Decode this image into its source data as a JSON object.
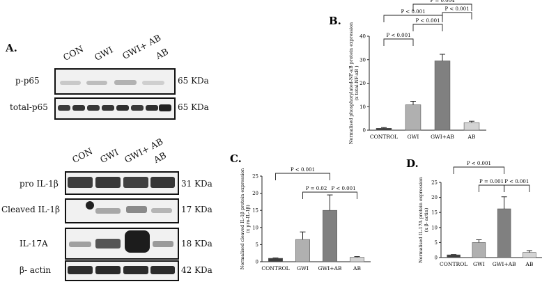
{
  "panel_a": {
    "letter": "A.",
    "top": {
      "lanes": [
        "CON",
        "GWI",
        "GWI+ AB",
        "AB"
      ],
      "rows": [
        {
          "label": "p-p65",
          "kda": "65 KDa"
        },
        {
          "label": "total-p65",
          "kda": "65 KDa"
        }
      ]
    },
    "bottom": {
      "lanes": [
        "CON",
        "GWI",
        "GWI+ AB",
        "AB"
      ],
      "rows": [
        {
          "label": "pro IL-1β",
          "kda": "31 KDa"
        },
        {
          "label": "Cleaved IL-1β",
          "kda": "17 KDa"
        },
        {
          "label": "IL-17A",
          "kda": "18 KDa"
        },
        {
          "label": "β- actin",
          "kda": "42 KDa"
        }
      ]
    }
  },
  "chart_data": [
    {
      "panel": "B.",
      "type": "bar",
      "categories": [
        "CONTROL",
        "GWI",
        "GWI+AB",
        "AB"
      ],
      "values": [
        0.8,
        10.8,
        29.5,
        3.2
      ],
      "errors": [
        0.3,
        1.5,
        2.8,
        0.6
      ],
      "ylabel": "Normalised phosphorylated-NF-κB protein expression",
      "ylabel2": "(x total-NF-κB )",
      "ylim": [
        0,
        40
      ],
      "yticks": [
        0,
        10,
        20,
        30,
        40
      ],
      "bar_colors": [
        "#3d3d3d",
        "#b0b0b0",
        "#808080",
        "#d4d4d4"
      ],
      "comparisons": [
        {
          "from": 0,
          "to": 1,
          "label": "P < 0.001"
        },
        {
          "from": 1,
          "to": 2,
          "label": "P < 0.001"
        },
        {
          "from": 2,
          "to": 3,
          "label": "P < 0.001"
        },
        {
          "from": 0,
          "to": 2,
          "label": "P < 0.001"
        },
        {
          "from": 1,
          "to": 3,
          "label": "P = 0.004"
        }
      ]
    },
    {
      "panel": "C.",
      "type": "bar",
      "categories": [
        "CONTROL",
        "GWI",
        "GWI+AB",
        "AB"
      ],
      "values": [
        1.0,
        6.5,
        15.0,
        1.3
      ],
      "errors": [
        0.1,
        2.2,
        4.5,
        0.2
      ],
      "ylabel": "Normalised cleaved IL-1β protein expression",
      "ylabel2": "(x pro-IL-1β)",
      "ylim": [
        0,
        25
      ],
      "yticks": [
        0,
        5,
        10,
        15,
        20,
        25
      ],
      "bar_colors": [
        "#3d3d3d",
        "#b0b0b0",
        "#808080",
        "#d4d4d4"
      ],
      "comparisons": [
        {
          "from": 1,
          "to": 2,
          "label": "P = 0.02"
        },
        {
          "from": 2,
          "to": 3,
          "label": "P < 0.001"
        },
        {
          "from": 0,
          "to": 2,
          "label": "P < 0.001"
        }
      ]
    },
    {
      "panel": "D.",
      "type": "bar",
      "categories": [
        "CONTROL",
        "GWI",
        "GWI+AB",
        "AB"
      ],
      "values": [
        0.9,
        5.0,
        16.2,
        1.7
      ],
      "errors": [
        0.1,
        0.9,
        4.0,
        0.6
      ],
      "ylabel": "Normalised IL-17A protein expression",
      "ylabel2": "(x β- actin)",
      "ylim": [
        0,
        25
      ],
      "yticks": [
        0,
        5,
        10,
        15,
        20,
        25
      ],
      "bar_colors": [
        "#3d3d3d",
        "#b0b0b0",
        "#808080",
        "#d4d4d4"
      ],
      "comparisons": [
        {
          "from": 1,
          "to": 2,
          "label": "P = 0.001"
        },
        {
          "from": 2,
          "to": 3,
          "label": "P < 0.001"
        },
        {
          "from": 0,
          "to": 2,
          "label": "P < 0.001"
        }
      ]
    }
  ]
}
